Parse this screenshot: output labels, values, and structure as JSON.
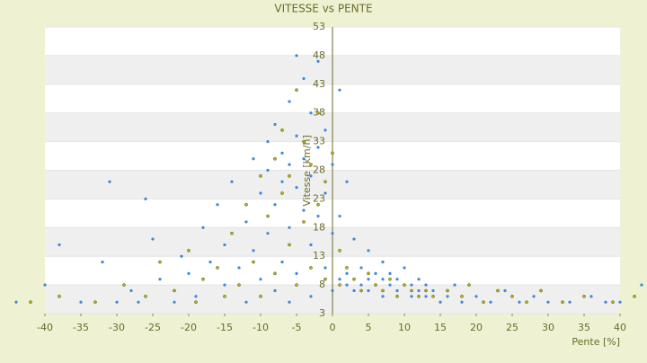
{
  "chart_data": {
    "type": "scatter",
    "title": "VITESSE vs PENTE",
    "xlabel": "Pente [%]",
    "ylabel": "Vitesse [km/h]",
    "xlim": [
      -40,
      40
    ],
    "xticks": [
      -40,
      -35,
      -30,
      -25,
      -20,
      -15,
      -10,
      -5,
      0,
      5,
      10,
      15,
      20,
      25,
      30,
      35,
      40
    ],
    "ylim": [
      3,
      53
    ],
    "yticks": [
      3,
      8,
      13,
      18,
      23,
      28,
      33,
      38,
      43,
      48,
      53
    ],
    "grid": true,
    "series": [
      {
        "color": "#3a8ad8",
        "x": [
          -44,
          -40,
          -38,
          -35,
          -32,
          -31,
          -30,
          -28,
          -27,
          -26,
          -25,
          -24,
          -22,
          -21,
          -20,
          -19,
          -18,
          -17,
          -16,
          -15,
          -15,
          -14,
          -13,
          -12,
          -12,
          -11,
          -11,
          -10,
          -10,
          -9,
          -9,
          -9,
          -8,
          -8,
          -8,
          -7,
          -7,
          -7,
          -6,
          -6,
          -6,
          -6,
          -5,
          -5,
          -5,
          -5,
          -4,
          -4,
          -4,
          -3,
          -3,
          -3,
          -3,
          -2,
          -2,
          -2,
          -1,
          -1,
          -1,
          0,
          0,
          0,
          1,
          1,
          1,
          2,
          2,
          2,
          3,
          3,
          3,
          4,
          4,
          5,
          5,
          5,
          6,
          6,
          7,
          7,
          7,
          8,
          8,
          9,
          9,
          10,
          10,
          11,
          11,
          12,
          12,
          13,
          13,
          14,
          15,
          16,
          17,
          18,
          20,
          22,
          24,
          26,
          28,
          30,
          33,
          36,
          38,
          40,
          43
        ],
        "values": [
          5,
          8,
          15,
          5,
          12,
          26,
          5,
          7,
          5,
          23,
          16,
          9,
          5,
          13,
          10,
          6,
          18,
          12,
          22,
          8,
          15,
          26,
          11,
          5,
          19,
          30,
          14,
          24,
          9,
          33,
          28,
          17,
          36,
          22,
          7,
          31,
          26,
          12,
          40,
          29,
          18,
          5,
          48,
          34,
          25,
          10,
          44,
          30,
          21,
          38,
          27,
          15,
          6,
          47,
          32,
          20,
          35,
          24,
          11,
          29,
          17,
          7,
          42,
          20,
          9,
          26,
          10,
          8,
          16,
          9,
          7,
          11,
          8,
          14,
          9,
          7,
          10,
          8,
          12,
          9,
          6,
          8,
          10,
          7,
          9,
          8,
          11,
          6,
          8,
          7,
          9,
          6,
          8,
          7,
          5,
          6,
          8,
          5,
          6,
          5,
          7,
          5,
          6,
          5,
          5,
          6,
          5,
          5,
          8
        ]
      },
      {
        "color": "#b8b020",
        "x": [
          -42,
          -38,
          -33,
          -29,
          -26,
          -24,
          -22,
          -20,
          -19,
          -18,
          -16,
          -15,
          -14,
          -13,
          -12,
          -11,
          -10,
          -10,
          -9,
          -8,
          -8,
          -7,
          -7,
          -6,
          -6,
          -5,
          -5,
          -4,
          -4,
          -3,
          -3,
          -2,
          -2,
          -1,
          -1,
          0,
          1,
          1,
          2,
          3,
          4,
          5,
          6,
          7,
          8,
          9,
          10,
          11,
          12,
          13,
          14,
          16,
          18,
          19,
          21,
          23,
          25,
          27,
          29,
          32,
          35,
          39,
          42
        ],
        "values": [
          5,
          6,
          5,
          8,
          6,
          12,
          7,
          14,
          5,
          9,
          11,
          6,
          17,
          8,
          22,
          12,
          27,
          6,
          20,
          30,
          10,
          24,
          35,
          15,
          27,
          42,
          8,
          33,
          19,
          29,
          11,
          38,
          22,
          26,
          9,
          31,
          14,
          8,
          11,
          9,
          7,
          10,
          8,
          7,
          9,
          6,
          8,
          7,
          6,
          7,
          6,
          7,
          6,
          8,
          5,
          7,
          6,
          5,
          7,
          5,
          6,
          5,
          6
        ]
      }
    ]
  }
}
